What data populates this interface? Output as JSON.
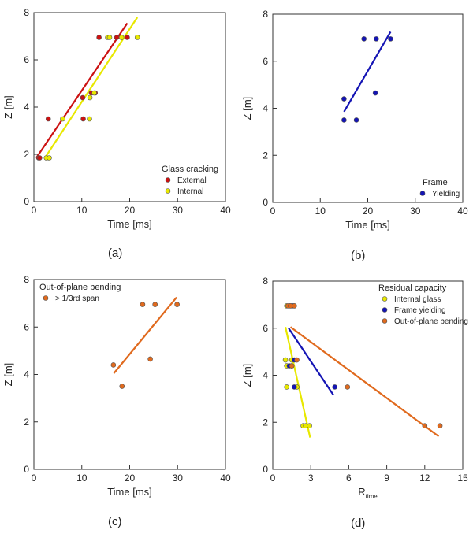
{
  "panel_labels": [
    "(a)",
    "(b)",
    "(c)",
    "(d)"
  ],
  "chart_data": [
    {
      "type": "scatter",
      "panel": "(a)",
      "xlabel": "Time [ms]",
      "ylabel": "Z [m]",
      "xlim": [
        0,
        40
      ],
      "ylim": [
        0,
        8
      ],
      "xticks": [
        0,
        10,
        20,
        30,
        40
      ],
      "yticks": [
        0,
        2,
        4,
        6,
        8
      ],
      "legend": {
        "title": "Glass cracking",
        "placement": "bottom-right"
      },
      "series": [
        {
          "name": "External",
          "color": "#cc1111",
          "points": [
            [
              1,
              1.85
            ],
            [
              1.2,
              1.85
            ],
            [
              3,
              3.5
            ],
            [
              10.3,
              3.5
            ],
            [
              10.2,
              4.4
            ],
            [
              12,
              4.6
            ],
            [
              12.8,
              4.6
            ],
            [
              13.6,
              6.95
            ],
            [
              17.3,
              6.95
            ],
            [
              19.5,
              6.95
            ]
          ],
          "fit": [
            [
              0.5,
              1.85
            ],
            [
              19.5,
              7.55
            ]
          ]
        },
        {
          "name": "Internal",
          "color": "#e8e800",
          "points": [
            [
              2.6,
              1.85
            ],
            [
              3.2,
              1.85
            ],
            [
              6,
              3.5
            ],
            [
              11.6,
              3.5
            ],
            [
              11.7,
              4.4
            ],
            [
              12.6,
              4.6
            ],
            [
              15.4,
              6.95
            ],
            [
              15.8,
              6.95
            ],
            [
              18.3,
              6.95
            ],
            [
              21.6,
              6.95
            ]
          ],
          "fit": [
            [
              2.3,
              1.85
            ],
            [
              21.6,
              7.8
            ]
          ]
        }
      ]
    },
    {
      "type": "scatter",
      "panel": "(b)",
      "xlabel": "Time [ms]",
      "ylabel": "Z [m]",
      "xlim": [
        0,
        40
      ],
      "ylim": [
        0,
        8
      ],
      "xticks": [
        0,
        10,
        20,
        30,
        40
      ],
      "yticks": [
        0,
        2,
        4,
        6,
        8
      ],
      "legend": {
        "title": "Frame",
        "placement": "bottom-right"
      },
      "series": [
        {
          "name": "Yielding",
          "color": "#1414b4",
          "points": [
            [
              15,
              3.5
            ],
            [
              17.6,
              3.5
            ],
            [
              15,
              4.4
            ],
            [
              21.6,
              4.65
            ],
            [
              19.2,
              6.95
            ],
            [
              21.8,
              6.95
            ],
            [
              24.8,
              6.95
            ]
          ],
          "fit": [
            [
              15,
              3.85
            ],
            [
              24.8,
              7.25
            ]
          ]
        }
      ]
    },
    {
      "type": "scatter",
      "panel": "(c)",
      "xlabel": "Time [ms]",
      "ylabel": "Z [m]",
      "xlim": [
        0,
        40
      ],
      "ylim": [
        0,
        8
      ],
      "xticks": [
        0,
        10,
        20,
        30,
        40
      ],
      "yticks": [
        0,
        2,
        4,
        6,
        8
      ],
      "legend": {
        "title": "Out-of-plane bending",
        "placement": "top-left"
      },
      "series": [
        {
          "name": "> 1/3rd span",
          "color": "#e06a1e",
          "points": [
            [
              18.4,
              3.5
            ],
            [
              16.6,
              4.4
            ],
            [
              24.3,
              4.65
            ],
            [
              22.7,
              6.95
            ],
            [
              25.3,
              6.95
            ],
            [
              29.9,
              6.95
            ]
          ],
          "fit": [
            [
              16.7,
              4.05
            ],
            [
              29.8,
              7.25
            ]
          ]
        }
      ]
    },
    {
      "type": "scatter",
      "panel": "(d)",
      "xlabel": "R",
      "xlabel_sub": "time",
      "ylabel": "Z [m]",
      "xlim": [
        0,
        15
      ],
      "ylim": [
        0,
        8
      ],
      "xticks": [
        0,
        3,
        6,
        9,
        12,
        15
      ],
      "yticks": [
        0,
        2,
        4,
        6,
        8
      ],
      "legend": {
        "title": "Residual capacity",
        "placement": "top-right"
      },
      "series": [
        {
          "name": "Internal glass",
          "color": "#e8e800",
          "points": [
            [
              2.4,
              1.85
            ],
            [
              2.6,
              1.85
            ],
            [
              2.9,
              1.85
            ],
            [
              1.1,
              3.5
            ],
            [
              1.9,
              3.5
            ],
            [
              1.1,
              4.4
            ],
            [
              1.5,
              4.4
            ],
            [
              1.0,
              4.65
            ],
            [
              1.5,
              4.65
            ],
            [
              1.1,
              6.95
            ],
            [
              1.4,
              6.95
            ],
            [
              1.7,
              6.95
            ]
          ],
          "fit": [
            [
              1.0,
              6.05
            ],
            [
              2.95,
              1.35
            ]
          ]
        },
        {
          "name": "Frame yielding",
          "color": "#1414b4",
          "points": [
            [
              1.7,
              3.5
            ],
            [
              4.9,
              3.5
            ],
            [
              1.3,
              4.4
            ],
            [
              1.7,
              4.65
            ],
            [
              1.3,
              6.95
            ],
            [
              1.5,
              6.95
            ],
            [
              1.6,
              6.95
            ]
          ],
          "fit": [
            [
              1.25,
              6.0
            ],
            [
              4.8,
              3.15
            ]
          ]
        },
        {
          "name": "Out-of-plane bending",
          "color": "#e06a1e",
          "points": [
            [
              12.0,
              1.85
            ],
            [
              13.2,
              1.85
            ],
            [
              5.9,
              3.5
            ],
            [
              1.5,
              4.4
            ],
            [
              1.9,
              4.65
            ],
            [
              1.2,
              6.95
            ],
            [
              1.4,
              6.95
            ],
            [
              1.7,
              6.95
            ]
          ],
          "fit": [
            [
              1.4,
              6.05
            ],
            [
              13.1,
              1.4
            ]
          ]
        }
      ]
    }
  ]
}
